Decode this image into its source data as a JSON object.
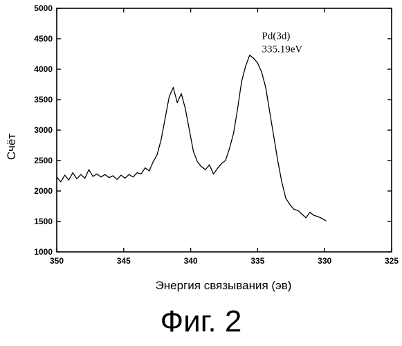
{
  "caption": "Фиг. 2",
  "chart_data": {
    "type": "line",
    "title": "",
    "xlabel": "Энергия связывания (эв)",
    "ylabel": "Счёт",
    "xlim": [
      350,
      325
    ],
    "ylim": [
      1000,
      5000
    ],
    "x_reversed": true,
    "x_ticks": [
      350,
      345,
      340,
      335,
      330,
      325
    ],
    "y_ticks": [
      1000,
      1500,
      2000,
      2500,
      3000,
      3500,
      4000,
      4500,
      5000
    ],
    "grid": false,
    "annotation": {
      "lines": [
        "Pd(3d)",
        "335.19eV"
      ],
      "x": 335.2,
      "y": 4200
    },
    "series": [
      {
        "name": "",
        "x": [
          350.0,
          349.7,
          349.4,
          349.1,
          348.8,
          348.5,
          348.2,
          347.9,
          347.6,
          347.3,
          347.0,
          346.7,
          346.4,
          346.1,
          345.8,
          345.5,
          345.2,
          344.9,
          344.6,
          344.3,
          344.0,
          343.7,
          343.4,
          343.1,
          342.8,
          342.5,
          342.2,
          341.9,
          341.6,
          341.3,
          341.0,
          340.7,
          340.4,
          340.1,
          339.8,
          339.5,
          339.2,
          338.9,
          338.6,
          338.3,
          338.0,
          337.7,
          337.4,
          337.1,
          336.8,
          336.5,
          336.2,
          335.9,
          335.6,
          335.3,
          335.0,
          334.7,
          334.4,
          334.1,
          333.8,
          333.5,
          333.2,
          332.9,
          332.6,
          332.3,
          332.0,
          331.7,
          331.4,
          331.1,
          330.8,
          330.5,
          330.2,
          329.9
        ],
        "y": [
          2230,
          2150,
          2260,
          2180,
          2300,
          2200,
          2270,
          2210,
          2350,
          2240,
          2280,
          2230,
          2270,
          2220,
          2250,
          2190,
          2260,
          2210,
          2270,
          2230,
          2300,
          2280,
          2380,
          2330,
          2480,
          2600,
          2850,
          3200,
          3550,
          3700,
          3450,
          3600,
          3350,
          3000,
          2650,
          2480,
          2400,
          2350,
          2430,
          2280,
          2370,
          2450,
          2500,
          2700,
          2950,
          3350,
          3800,
          4050,
          4230,
          4180,
          4100,
          3950,
          3700,
          3300,
          2900,
          2500,
          2150,
          1880,
          1780,
          1700,
          1680,
          1620,
          1560,
          1650,
          1600,
          1580,
          1550,
          1510
        ]
      }
    ]
  }
}
